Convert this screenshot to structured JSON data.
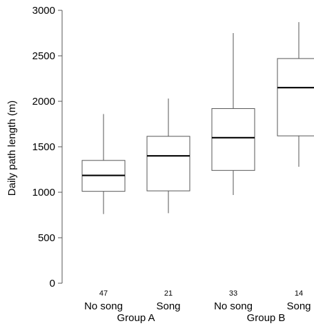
{
  "chart_data": {
    "type": "box",
    "title": "",
    "xlabel": "",
    "ylabel": "Daily path length (m)",
    "ylim": [
      0,
      3000
    ],
    "yticks": [
      0,
      500,
      1000,
      1500,
      2000,
      2500,
      3000
    ],
    "ytick_labels": [
      "0",
      "500",
      "1000",
      "1500",
      "2000",
      "2500",
      "3000"
    ],
    "grid": false,
    "groups": [
      {
        "label": "Group A",
        "categories": [
          "No song",
          "Song"
        ]
      },
      {
        "label": "Group B",
        "categories": [
          "No song",
          "Song"
        ]
      }
    ],
    "boxes": [
      {
        "category": "No song",
        "group": "Group A",
        "n": "47",
        "whisker_low": 760,
        "q1": 1010,
        "median": 1185,
        "q3": 1350,
        "whisker_high": 1860
      },
      {
        "category": "Song",
        "group": "Group A",
        "n": "21",
        "whisker_low": 770,
        "q1": 1015,
        "median": 1400,
        "q3": 1615,
        "whisker_high": 2030
      },
      {
        "category": "No song",
        "group": "Group B",
        "n": "33",
        "whisker_low": 970,
        "q1": 1240,
        "median": 1600,
        "q3": 1920,
        "whisker_high": 2750
      },
      {
        "category": "Song",
        "group": "Group B",
        "n": "14",
        "whisker_low": 1280,
        "q1": 1620,
        "median": 2150,
        "q3": 2470,
        "whisker_high": 2870
      }
    ]
  }
}
